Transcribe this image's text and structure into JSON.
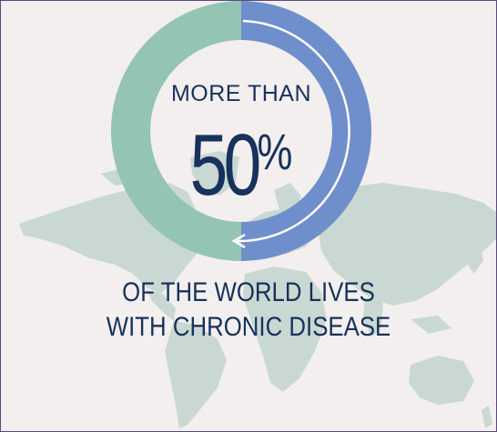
{
  "stat": {
    "prefix": "MORE THAN",
    "number": "50",
    "unit": "%",
    "fraction_shown": 0.5
  },
  "caption": {
    "line1": "OF THE WORLD LIVES",
    "line2": "WITH CHRONIC DISEASE"
  },
  "colors": {
    "background": "#f3efee",
    "ring_left": "#93c4b4",
    "ring_right": "#6f8fcc",
    "text": "#17325c",
    "map": "#c9d8d2",
    "frame_border": "#5b4b7a"
  },
  "icons": [
    "world-map-icon",
    "circular-arrow-icon"
  ]
}
